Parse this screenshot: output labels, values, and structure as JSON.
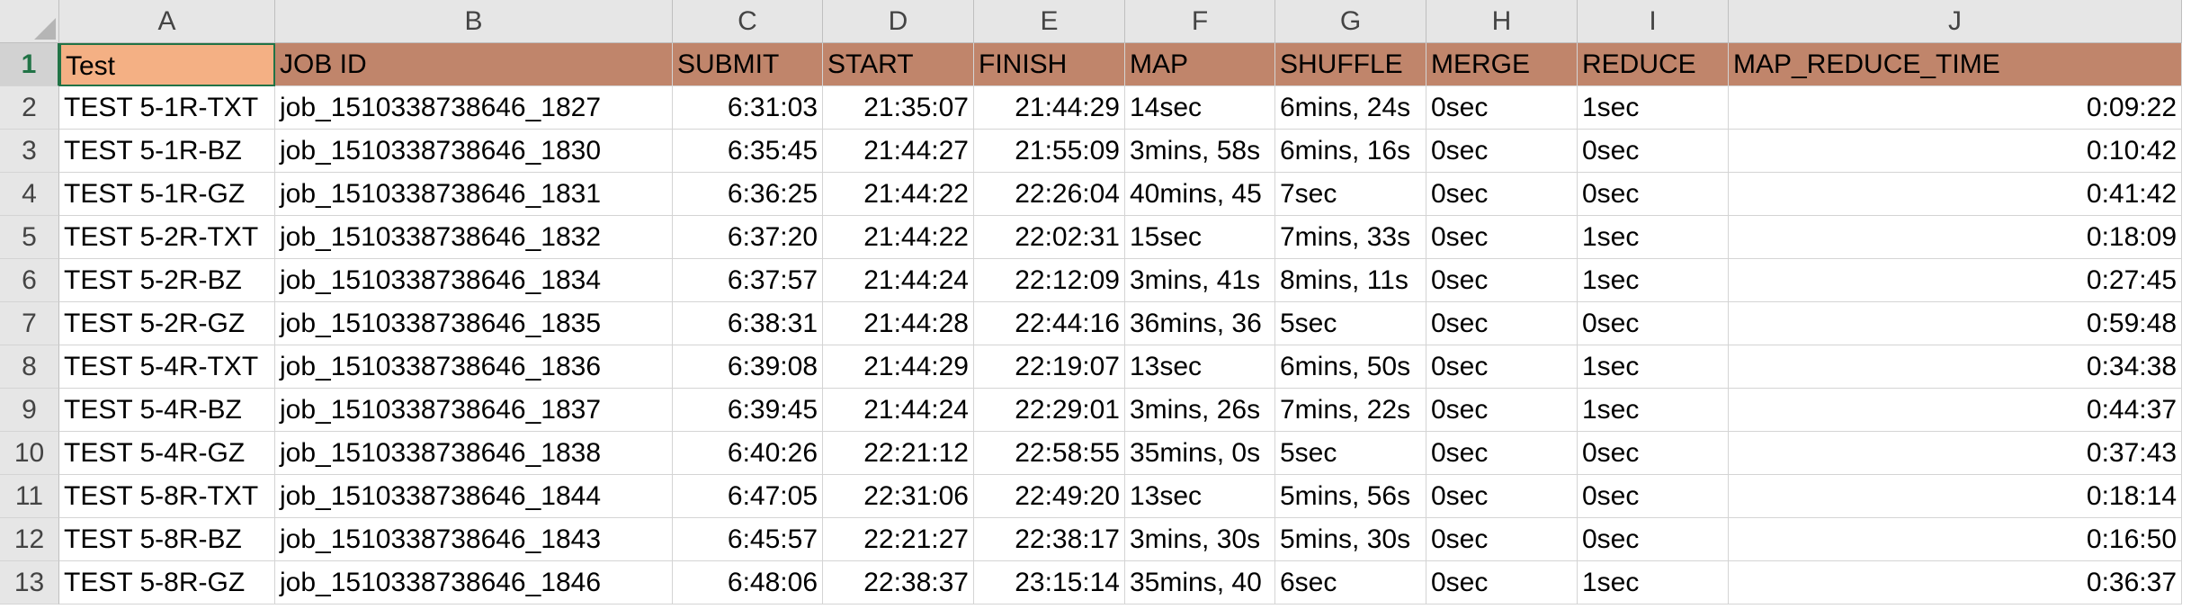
{
  "columns": [
    "A",
    "B",
    "C",
    "D",
    "E",
    "F",
    "G",
    "H",
    "I",
    "J"
  ],
  "header_row": {
    "row_number": "1",
    "cells": [
      "Test",
      "JOB ID",
      "SUBMIT",
      "START",
      "FINISH",
      "MAP",
      "SHUFFLE",
      "MERGE",
      "REDUCE",
      "MAP_REDUCE_TIME"
    ]
  },
  "rows": [
    {
      "n": "2",
      "test": "TEST 5-1R-TXT",
      "job": "job_1510338738646_1827",
      "submit": "6:31:03",
      "start": "21:35:07",
      "finish": "21:44:29",
      "map": "14sec",
      "shuffle": "6mins, 24s",
      "merge": "0sec",
      "reduce": "1sec",
      "mrt": "0:09:22"
    },
    {
      "n": "3",
      "test": "TEST 5-1R-BZ",
      "job": "job_1510338738646_1830",
      "submit": "6:35:45",
      "start": "21:44:27",
      "finish": "21:55:09",
      "map": "3mins, 58s",
      "shuffle": "6mins, 16s",
      "merge": "0sec",
      "reduce": "0sec",
      "mrt": "0:10:42"
    },
    {
      "n": "4",
      "test": "TEST 5-1R-GZ",
      "job": "job_1510338738646_1831",
      "submit": "6:36:25",
      "start": "21:44:22",
      "finish": "22:26:04",
      "map": "40mins, 45",
      "shuffle": "7sec",
      "merge": "0sec",
      "reduce": "0sec",
      "mrt": "0:41:42"
    },
    {
      "n": "5",
      "test": "TEST 5-2R-TXT",
      "job": "job_1510338738646_1832",
      "submit": "6:37:20",
      "start": "21:44:22",
      "finish": "22:02:31",
      "map": "15sec",
      "shuffle": "7mins, 33s",
      "merge": "0sec",
      "reduce": "1sec",
      "mrt": "0:18:09"
    },
    {
      "n": "6",
      "test": "TEST 5-2R-BZ",
      "job": "job_1510338738646_1834",
      "submit": "6:37:57",
      "start": "21:44:24",
      "finish": "22:12:09",
      "map": "3mins, 41s",
      "shuffle": "8mins, 11s",
      "merge": "0sec",
      "reduce": "1sec",
      "mrt": "0:27:45"
    },
    {
      "n": "7",
      "test": "TEST 5-2R-GZ",
      "job": "job_1510338738646_1835",
      "submit": "6:38:31",
      "start": "21:44:28",
      "finish": "22:44:16",
      "map": "36mins, 36",
      "shuffle": "5sec",
      "merge": "0sec",
      "reduce": "0sec",
      "mrt": "0:59:48"
    },
    {
      "n": "8",
      "test": "TEST 5-4R-TXT",
      "job": "job_1510338738646_1836",
      "submit": "6:39:08",
      "start": "21:44:29",
      "finish": "22:19:07",
      "map": "13sec",
      "shuffle": "6mins, 50s",
      "merge": "0sec",
      "reduce": "1sec",
      "mrt": "0:34:38"
    },
    {
      "n": "9",
      "test": "TEST 5-4R-BZ",
      "job": "job_1510338738646_1837",
      "submit": "6:39:45",
      "start": "21:44:24",
      "finish": "22:29:01",
      "map": "3mins, 26s",
      "shuffle": "7mins, 22s",
      "merge": "0sec",
      "reduce": "1sec",
      "mrt": "0:44:37"
    },
    {
      "n": "10",
      "test": "TEST 5-4R-GZ",
      "job": "job_1510338738646_1838",
      "submit": "6:40:26",
      "start": "22:21:12",
      "finish": "22:58:55",
      "map": "35mins, 0s",
      "shuffle": "5sec",
      "merge": "0sec",
      "reduce": "0sec",
      "mrt": "0:37:43"
    },
    {
      "n": "11",
      "test": "TEST 5-8R-TXT",
      "job": "job_1510338738646_1844",
      "submit": "6:47:05",
      "start": "22:31:06",
      "finish": "22:49:20",
      "map": "13sec",
      "shuffle": "5mins, 56s",
      "merge": "0sec",
      "reduce": "0sec",
      "mrt": "0:18:14"
    },
    {
      "n": "12",
      "test": "TEST 5-8R-BZ",
      "job": "job_1510338738646_1843",
      "submit": "6:45:57",
      "start": "22:21:27",
      "finish": "22:38:17",
      "map": "3mins, 30s",
      "shuffle": "5mins, 30s",
      "merge": "0sec",
      "reduce": "0sec",
      "mrt": "0:16:50"
    },
    {
      "n": "13",
      "test": "TEST 5-8R-GZ",
      "job": "job_1510338738646_1846",
      "submit": "6:48:06",
      "start": "22:38:37",
      "finish": "23:15:14",
      "map": "35mins, 40",
      "shuffle": "6sec",
      "merge": "0sec",
      "reduce": "1sec",
      "mrt": "0:36:37"
    }
  ],
  "colors": {
    "header_fill": "#c0856b",
    "selected_cell_fill": "#f4b084",
    "selection_border": "#217346",
    "gridline": "#d4d4d4",
    "heading_fill": "#e6e6e6"
  }
}
